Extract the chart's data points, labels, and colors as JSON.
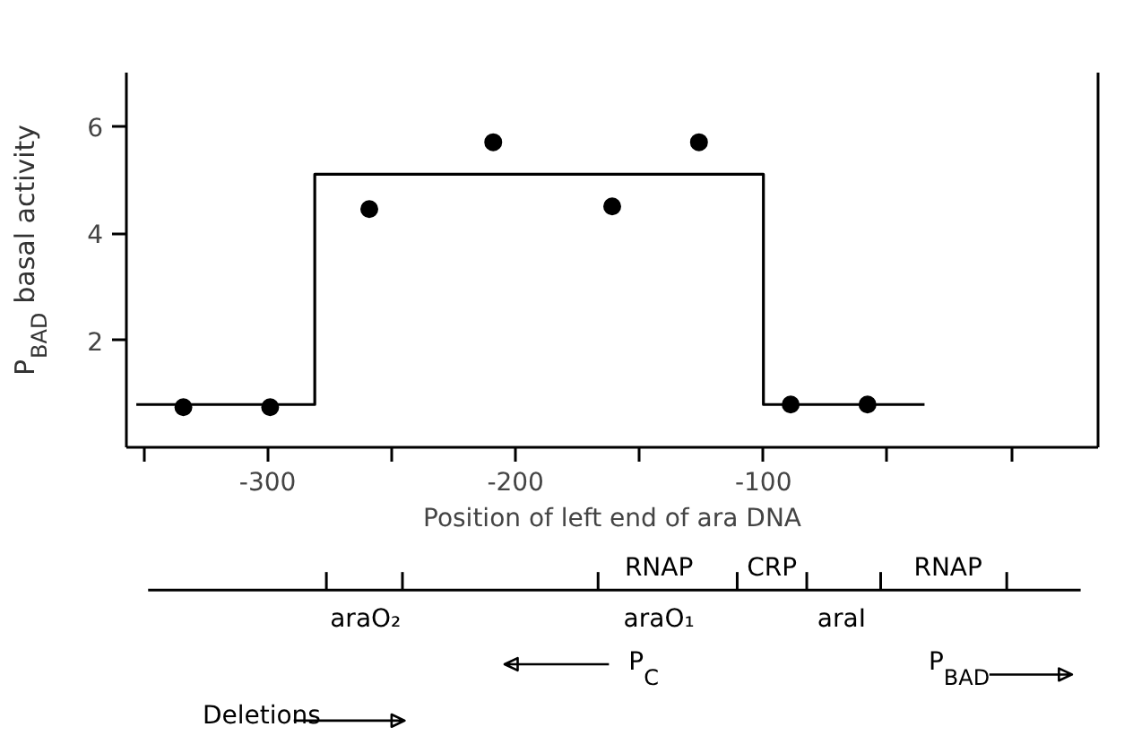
{
  "chart_data": {
    "type": "scatter",
    "ylabel": "P$_{BAD}$ basal activity",
    "xlabel": "Position of left end of ara DNA",
    "xlim": [
      -357,
      35
    ],
    "xticks": [
      {
        "value": -350,
        "label": null
      },
      -300,
      {
        "value": -250,
        "label": null
      },
      -200,
      {
        "value": -150,
        "label": null
      },
      -100,
      {
        "value": -50,
        "label": null
      },
      {
        "value": 0,
        "label": null
      }
    ],
    "ylim": [
      0,
      7
    ],
    "yticks": [
      2,
      4,
      6
    ],
    "grid": false,
    "series": [
      {
        "color": "#000000",
        "marker": "circle",
        "x": [
          -334,
          -299,
          -259,
          -209,
          -161,
          -126,
          -89,
          -58
        ],
        "values": [
          0.75,
          0.75,
          4.45,
          5.7,
          4.5,
          5.7,
          0.8,
          0.8
        ]
      },
      {
        "type": "step",
        "color": "#000000",
        "line_style": "solid",
        "x": [
          -353,
          -281,
          -100,
          -35
        ],
        "values": [
          0.8,
          5.1,
          0.8,
          0.8
        ]
      }
    ],
    "annotations": [
      "RNAP",
      "CRP",
      "RNAP",
      "araO₂",
      "araO₁",
      "araI",
      "P$_{C}$",
      "P$_{BAD}$",
      "Deletions"
    ]
  }
}
